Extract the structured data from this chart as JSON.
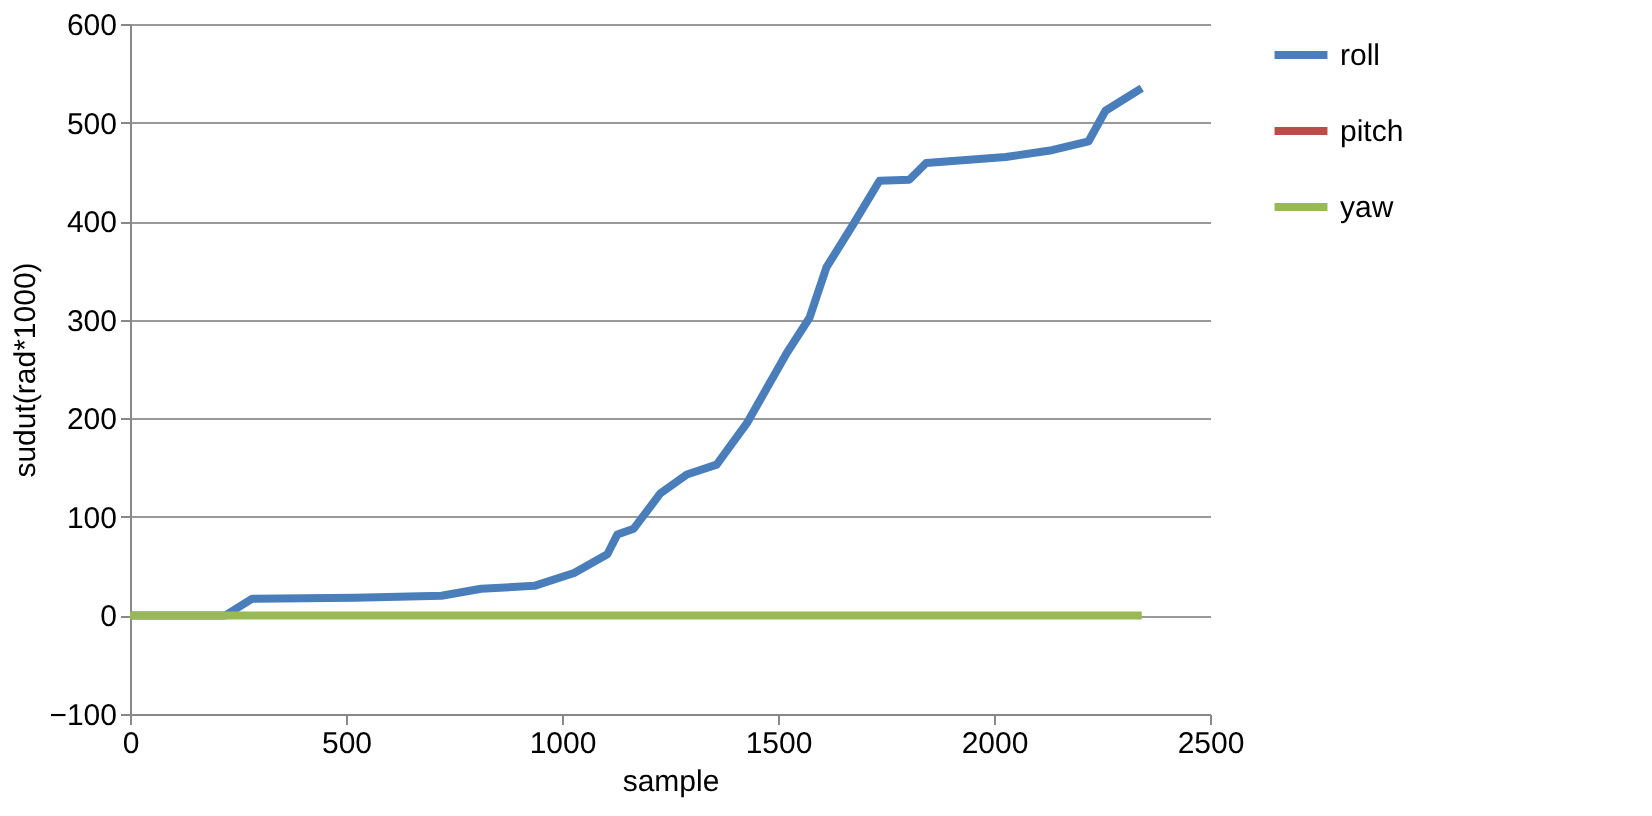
{
  "chart_data": {
    "type": "line",
    "xlabel": "sample",
    "ylabel": "sudut(rad*1000)",
    "xlim": [
      0,
      2500
    ],
    "xticks": [
      0,
      500,
      1000,
      1500,
      2000,
      2500
    ],
    "ylim": [
      -100,
      600
    ],
    "yticks": [
      -100,
      0,
      100,
      200,
      300,
      400,
      500,
      600
    ],
    "grid": "y",
    "legend": "right",
    "line_style": "solid",
    "marker": "none",
    "series": [
      {
        "name": "roll",
        "color": "#4a7ebb",
        "x": [
          0,
          221,
          283,
          521,
          721,
          813,
          936,
          1028,
          1105,
          1128,
          1166,
          1228,
          1289,
          1358,
          1428,
          1520,
          1573,
          1612,
          1673,
          1735,
          1804,
          1843,
          2027,
          2134,
          2219,
          2258,
          2342
        ],
        "values": [
          0,
          0,
          17,
          18,
          20,
          27,
          30,
          43,
          62,
          82,
          88,
          124,
          143,
          153,
          195,
          266,
          302,
          353,
          396,
          441,
          442,
          459,
          465,
          472,
          481,
          512,
          535
        ]
      },
      {
        "name": "pitch",
        "color": "#be4b48"
      },
      {
        "name": "yaw",
        "color": "#98b954",
        "x": [
          0,
          2342
        ],
        "values": [
          0,
          0
        ]
      }
    ]
  }
}
